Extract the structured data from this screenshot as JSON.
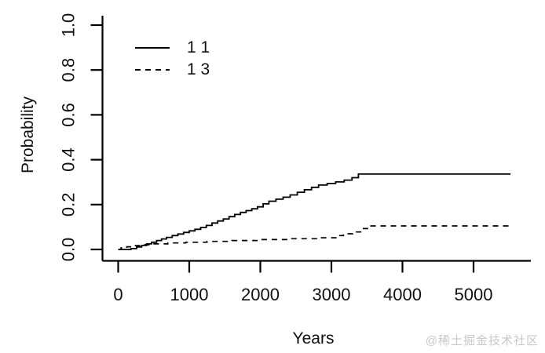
{
  "figure": {
    "background": "#ffffff",
    "watermark": {
      "text": "@稀土掘金技术社区",
      "color": "#c8c8c8"
    }
  },
  "chart_data": {
    "type": "line",
    "subtype": "step",
    "title": "",
    "xlabel": "Years",
    "ylabel": "Probability",
    "xlim": [
      0,
      5800
    ],
    "ylim": [
      0.0,
      1.0
    ],
    "grid": false,
    "legend_position": "top-left-inside",
    "axis_color": "#000000",
    "line_color": "#000000",
    "x_ticks": [
      {
        "value": 0,
        "label": "0"
      },
      {
        "value": 1000,
        "label": "1000"
      },
      {
        "value": 2000,
        "label": "2000"
      },
      {
        "value": 3000,
        "label": "3000"
      },
      {
        "value": 4000,
        "label": "4000"
      },
      {
        "value": 5000,
        "label": "5000"
      }
    ],
    "y_ticks": [
      {
        "value": 0.0,
        "label": "0.0"
      },
      {
        "value": 0.2,
        "label": "0.2"
      },
      {
        "value": 0.4,
        "label": "0.4"
      },
      {
        "value": 0.6,
        "label": "0.6"
      },
      {
        "value": 0.8,
        "label": "0.8"
      },
      {
        "value": 1.0,
        "label": "1.0"
      }
    ],
    "series": [
      {
        "name": "1 1",
        "style": "solid",
        "final_value": 0.34,
        "points": [
          [
            0,
            0
          ],
          [
            180,
            0.004
          ],
          [
            260,
            0.011
          ],
          [
            330,
            0.018
          ],
          [
            400,
            0.025
          ],
          [
            470,
            0.032
          ],
          [
            540,
            0.04
          ],
          [
            610,
            0.047
          ],
          [
            680,
            0.054
          ],
          [
            760,
            0.062
          ],
          [
            840,
            0.069
          ],
          [
            920,
            0.076
          ],
          [
            1000,
            0.083
          ],
          [
            1080,
            0.09
          ],
          [
            1160,
            0.098
          ],
          [
            1240,
            0.107
          ],
          [
            1320,
            0.118
          ],
          [
            1400,
            0.127
          ],
          [
            1480,
            0.136
          ],
          [
            1560,
            0.146
          ],
          [
            1640,
            0.156
          ],
          [
            1720,
            0.165
          ],
          [
            1800,
            0.173
          ],
          [
            1880,
            0.181
          ],
          [
            1960,
            0.19
          ],
          [
            2040,
            0.203
          ],
          [
            2120,
            0.215
          ],
          [
            2220,
            0.224
          ],
          [
            2320,
            0.233
          ],
          [
            2420,
            0.243
          ],
          [
            2520,
            0.255
          ],
          [
            2620,
            0.266
          ],
          [
            2720,
            0.277
          ],
          [
            2820,
            0.287
          ],
          [
            2940,
            0.294
          ],
          [
            3060,
            0.301
          ],
          [
            3180,
            0.309
          ],
          [
            3290,
            0.32
          ],
          [
            3380,
            0.336
          ],
          [
            5520,
            0.336
          ]
        ]
      },
      {
        "name": "1 3",
        "style": "dashed",
        "final_value": 0.105,
        "points": [
          [
            0,
            0
          ],
          [
            40,
            0.007
          ],
          [
            120,
            0.012
          ],
          [
            220,
            0.017
          ],
          [
            350,
            0.021
          ],
          [
            500,
            0.025
          ],
          [
            700,
            0.029
          ],
          [
            950,
            0.032
          ],
          [
            1250,
            0.036
          ],
          [
            1600,
            0.04
          ],
          [
            2000,
            0.044
          ],
          [
            2400,
            0.048
          ],
          [
            2800,
            0.052
          ],
          [
            3080,
            0.062
          ],
          [
            3170,
            0.07
          ],
          [
            3300,
            0.078
          ],
          [
            3430,
            0.093
          ],
          [
            3520,
            0.105
          ],
          [
            5520,
            0.105
          ]
        ]
      }
    ]
  }
}
